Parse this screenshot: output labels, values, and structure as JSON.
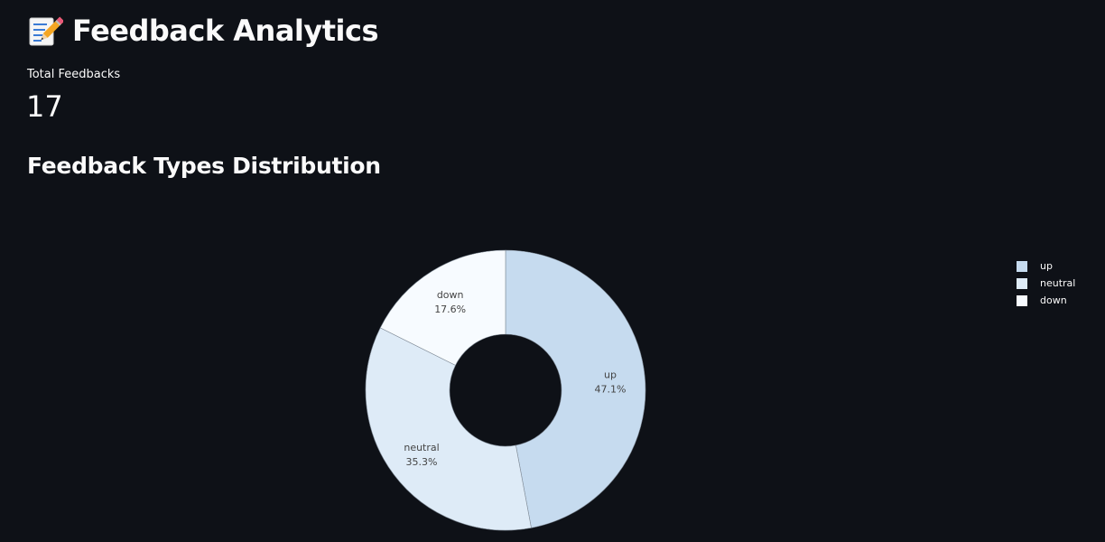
{
  "page": {
    "title": "Feedback Analytics",
    "title_icon": "memo-pencil-icon"
  },
  "metric": {
    "label": "Total Feedbacks",
    "value": "17"
  },
  "section": {
    "heading": "Feedback Types Distribution"
  },
  "chart_data": {
    "type": "pie",
    "hole": true,
    "labels": [
      "up",
      "neutral",
      "down"
    ],
    "values": [
      8,
      6,
      3
    ],
    "percent_labels": [
      "47.1%",
      "35.3%",
      "17.6%"
    ],
    "colors": [
      "#c6dbef",
      "#deebf7",
      "#f7fbff"
    ],
    "legend_position": "right",
    "legend": [
      "up",
      "neutral",
      "down"
    ]
  }
}
